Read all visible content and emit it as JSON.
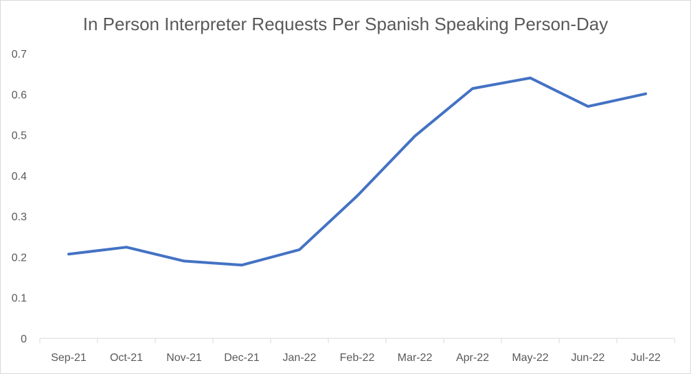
{
  "chart_data": {
    "type": "line",
    "title": "In Person Interpreter Requests Per Spanish Speaking Person-Day",
    "xlabel": "",
    "ylabel": "",
    "categories": [
      "Sep-21",
      "Oct-21",
      "Nov-21",
      "Dec-21",
      "Jan-22",
      "Feb-22",
      "Mar-22",
      "Apr-22",
      "May-22",
      "Jun-22",
      "Jul-22"
    ],
    "series": [
      {
        "values": [
          0.207,
          0.224,
          0.19,
          0.18,
          0.218,
          0.35,
          0.497,
          0.614,
          0.64,
          0.57,
          0.601
        ],
        "color": "#4472c4"
      }
    ],
    "ylim": [
      0,
      0.7
    ],
    "yticks": [
      "0",
      "0.1",
      "0.2",
      "0.3",
      "0.4",
      "0.5",
      "0.6",
      "0.7"
    ],
    "grid": false,
    "legend": "none"
  }
}
